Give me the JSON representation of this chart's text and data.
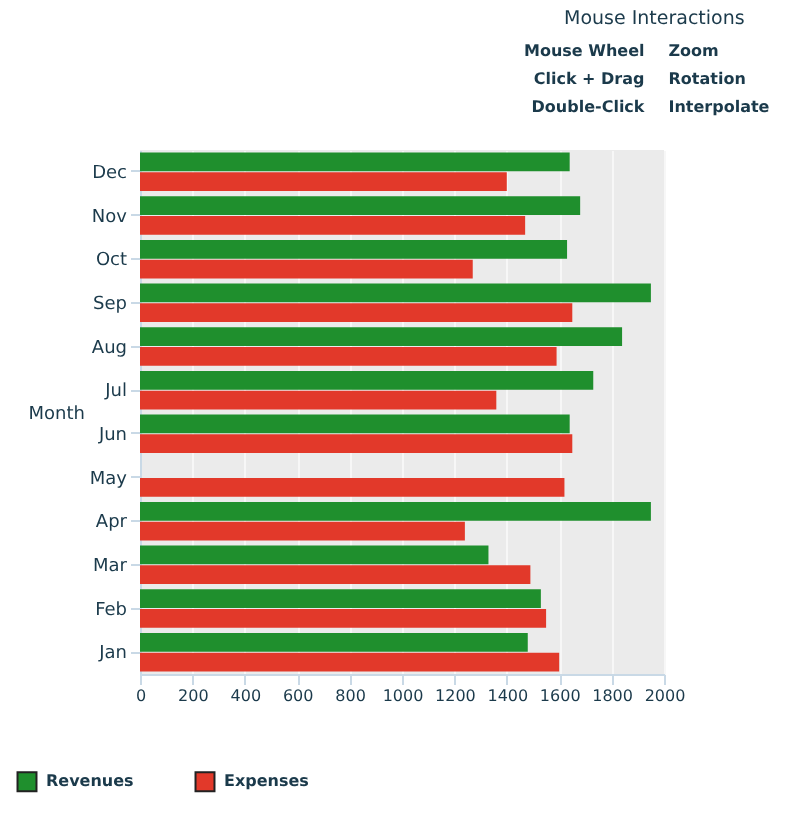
{
  "chart_data": {
    "type": "bar",
    "orientation": "horizontal",
    "ylabel": "Month",
    "categories": [
      "Dec",
      "Nov",
      "Oct",
      "Sep",
      "Aug",
      "Jul",
      "Jun",
      "May",
      "Apr",
      "Mar",
      "Feb",
      "Jan"
    ],
    "series": [
      {
        "name": "Revenues",
        "color": "#1f8f2d",
        "values": [
          1640,
          1680,
          1630,
          1950,
          1840,
          1730,
          1640,
          null,
          1950,
          1330,
          1530,
          1480
        ]
      },
      {
        "name": "Expenses",
        "color": "#e2392a",
        "values": [
          1400,
          1470,
          1270,
          1650,
          1590,
          1360,
          1650,
          1620,
          1240,
          1490,
          1550,
          1600
        ]
      }
    ],
    "xlim": [
      0,
      2000
    ],
    "xticks": [
      0,
      200,
      400,
      600,
      800,
      1000,
      1200,
      1400,
      1600,
      1800,
      2000
    ],
    "grid": "x",
    "legend": "bottom left",
    "annotations": [
      "Mouse Interactions",
      "Mouse Wheel",
      "Zoom",
      "Click + Drag",
      "Rotation",
      "Double-Click",
      "Interpolate"
    ]
  }
}
